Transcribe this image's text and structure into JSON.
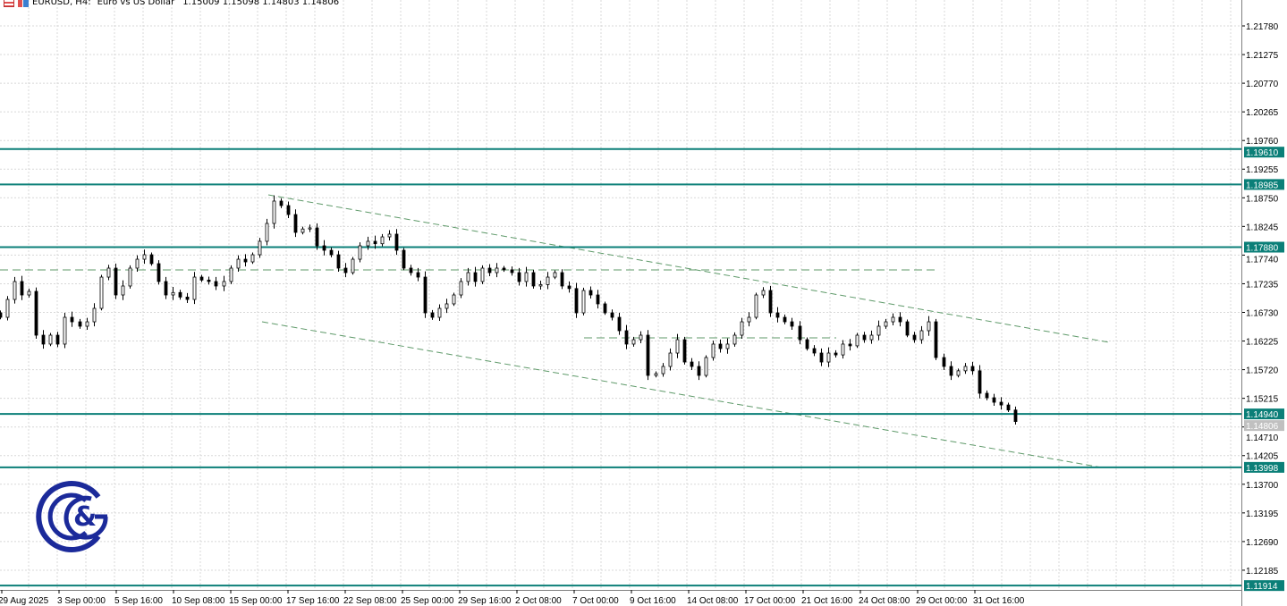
{
  "header": {
    "symbol": "EURUSD, H4:",
    "description": "Euro vs US Dollar",
    "ohlc": "1.15009 1.15098 1.14803 1.14806",
    "icons": [
      "list-icon",
      "chart-properties-icon"
    ]
  },
  "colors": {
    "level": "#0b7f78",
    "bull": "#ffffff",
    "bear": "#000000",
    "trend": "#5f9a6a",
    "grid": "#d8d8d8",
    "logo": "#1b2a9a",
    "bid": "#c0c0c0"
  },
  "chart_data": {
    "type": "candlestick",
    "symbol": "EURUSD",
    "timeframe": "H4",
    "ylim": [
      1.117,
      1.2235
    ],
    "y_ticks": [
      "1.21780",
      "1.21275",
      "1.20770",
      "1.20265",
      "1.19760",
      "1.19255",
      "1.18750",
      "1.18245",
      "1.17740",
      "1.17235",
      "1.16730",
      "1.16225",
      "1.15720",
      "1.15215",
      "1.14710",
      "1.14205",
      "1.13700",
      "1.13195",
      "1.12690",
      "1.12185"
    ],
    "x_ticks": [
      "29 Aug 2025",
      "3 Sep 00:00",
      "5 Sep 16:00",
      "10 Sep 08:00",
      "15 Sep 00:00",
      "17 Sep 16:00",
      "22 Sep 08:00",
      "25 Sep 00:00",
      "29 Sep 16:00",
      "2 Oct 08:00",
      "7 Oct 00:00",
      "9 Oct 16:00",
      "14 Oct 08:00",
      "17 Oct 00:00",
      "21 Oct 16:00",
      "24 Oct 08:00",
      "29 Oct 00:00",
      "31 Oct 16:00"
    ],
    "close": [
      1.16643,
      1.16958,
      1.17274,
      1.17037,
      1.171,
      1.16328,
      1.16171,
      1.16328,
      1.16171,
      1.16643,
      1.16564,
      1.16486,
      1.16564,
      1.16801,
      1.17352,
      1.1751,
      1.17037,
      1.17195,
      1.1751,
      1.17667,
      1.17746,
      1.17589,
      1.17274,
      1.17037,
      1.1708,
      1.17,
      1.16958,
      1.17352,
      1.173,
      1.17274,
      1.17195,
      1.17274,
      1.1751,
      1.17667,
      1.1762,
      1.17746,
      1.17983,
      1.18298,
      1.18692,
      1.18613,
      1.18455,
      1.1814,
      1.182,
      1.18219,
      1.17904,
      1.17825,
      1.17746,
      1.1751,
      1.17431,
      1.17667,
      1.17904,
      1.17983,
      1.1794,
      1.18061,
      1.18109,
      1.17825,
      1.1751,
      1.17431,
      1.17352,
      1.16722,
      1.16643,
      1.16801,
      1.1688,
      1.17037,
      1.17274,
      1.17431,
      1.17274,
      1.1751,
      1.17431,
      1.1751,
      1.1748,
      1.17431,
      1.17274,
      1.17431,
      1.17195,
      1.1722,
      1.17352,
      1.17431,
      1.17195,
      1.1715,
      1.16722,
      1.17116,
      1.17037,
      1.1688,
      1.16722,
      1.16643,
      1.16407,
      1.16171,
      1.16249,
      1.16328,
      1.15619,
      1.1565,
      1.15777,
      1.16013,
      1.16249,
      1.15855,
      1.15777,
      1.15619,
      1.15934,
      1.16171,
      1.16092,
      1.16171,
      1.16328,
      1.16564,
      1.16643,
      1.17037,
      1.17116,
      1.16722,
      1.16643,
      1.16564,
      1.16486,
      1.16249,
      1.16092,
      1.16013,
      1.15855,
      1.16013,
      1.1598,
      1.16171,
      1.1614,
      1.16328,
      1.16249,
      1.16328,
      1.16486,
      1.16564,
      1.16643,
      1.16564,
      1.16328,
      1.16249,
      1.16407,
      1.16564,
      1.15934,
      1.15777,
      1.15619,
      1.157,
      1.15777,
      1.157,
      1.15304,
      1.15225,
      1.15146,
      1.15098,
      1.15009,
      1.14806
    ],
    "levels": [
      "1.19610",
      "1.18985",
      "1.17880",
      "1.14940",
      "1.13998",
      "1.11914"
    ],
    "bid": "1.14806",
    "dashed_levels": [
      1.17478,
      1.16281
    ],
    "channel": {
      "upper": [
        1.18802,
        1.16203
      ],
      "lower": [
        1.16564,
        1.13996
      ]
    },
    "grid": true
  }
}
